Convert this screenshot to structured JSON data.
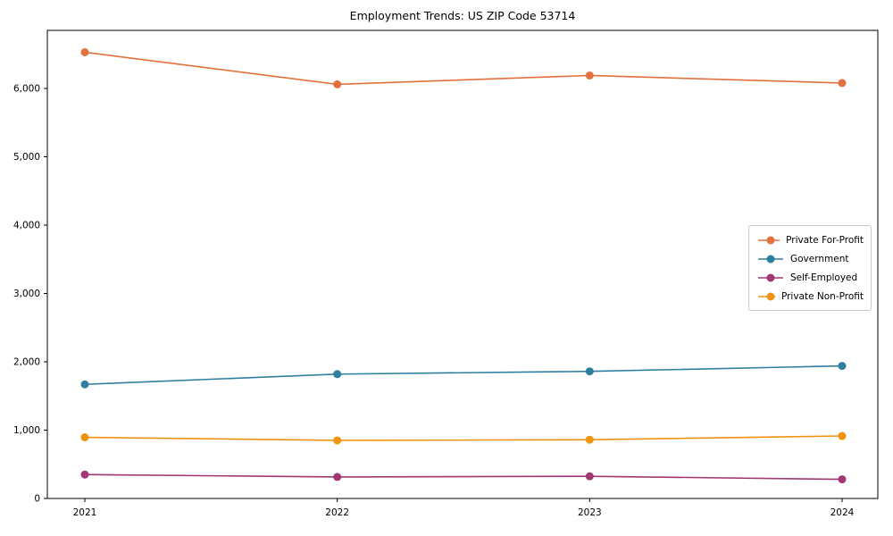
{
  "chart_data": {
    "type": "line",
    "title": "Employment Trends: US ZIP Code 53714",
    "x": [
      2021,
      2022,
      2023,
      2024
    ],
    "xtick_labels": [
      "2021",
      "2022",
      "2023",
      "2024"
    ],
    "yticks": [
      0,
      1000,
      2000,
      3000,
      4000,
      5000,
      6000
    ],
    "ytick_labels": [
      "0",
      "1,000",
      "2,000",
      "3,000",
      "4,000",
      "5,000",
      "6,000"
    ],
    "ylim": [
      0,
      6850
    ],
    "grid": false,
    "marker": "circle",
    "legend_position": "center-right",
    "series": [
      {
        "name": "Private For-Profit",
        "color": "#E2713E",
        "values": [
          6530,
          6060,
          6190,
          6080
        ]
      },
      {
        "name": "Government",
        "color": "#2E7EA0",
        "values": [
          1670,
          1820,
          1860,
          1940
        ]
      },
      {
        "name": "Self-Employed",
        "color": "#A13873",
        "values": [
          350,
          315,
          325,
          280
        ]
      },
      {
        "name": "Private Non-Profit",
        "color": "#F0940F",
        "values": [
          895,
          850,
          860,
          915
        ]
      }
    ],
    "xlabel": "",
    "ylabel": ""
  }
}
